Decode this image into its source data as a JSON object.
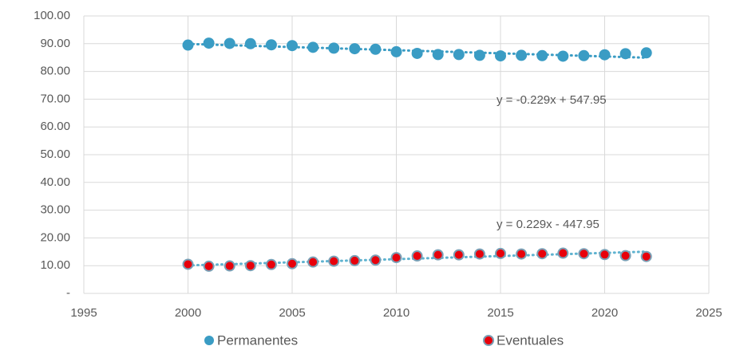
{
  "chart_data": {
    "type": "scatter",
    "x": [
      2000,
      2001,
      2002,
      2003,
      2004,
      2005,
      2006,
      2007,
      2008,
      2009,
      2010,
      2011,
      2012,
      2013,
      2014,
      2015,
      2016,
      2017,
      2018,
      2019,
      2020,
      2021,
      2022
    ],
    "series": [
      {
        "name": "Permanentes",
        "color": "#3a9cc4",
        "trendline": true,
        "values": [
          89.5,
          90.2,
          90.1,
          90.0,
          89.6,
          89.3,
          88.7,
          88.4,
          88.2,
          88.0,
          87.1,
          86.5,
          86.1,
          86.1,
          85.8,
          85.6,
          85.8,
          85.7,
          85.5,
          85.7,
          86.0,
          86.4,
          86.7
        ]
      },
      {
        "name": "Eventuales",
        "color": "#e8000b",
        "trendline": true,
        "values": [
          10.5,
          9.8,
          9.9,
          10.0,
          10.4,
          10.7,
          11.3,
          11.6,
          11.8,
          12.0,
          12.9,
          13.5,
          13.9,
          13.9,
          14.2,
          14.4,
          14.2,
          14.3,
          14.5,
          14.3,
          14.0,
          13.6,
          13.3
        ]
      }
    ],
    "annotations": [
      "y = -0.229x + 547.95",
      "y = 0.229x - 447.95"
    ],
    "xlim": [
      1995,
      2025
    ],
    "xticks": [
      1995,
      2000,
      2005,
      2010,
      2015,
      2020,
      2025
    ],
    "ylim": [
      0,
      100
    ],
    "yticks": [
      {
        "value": 0,
        "label": "-"
      },
      {
        "value": 10,
        "label": "10.00"
      },
      {
        "value": 20,
        "label": "20.00"
      },
      {
        "value": 30,
        "label": "30.00"
      },
      {
        "value": 40,
        "label": "40.00"
      },
      {
        "value": 50,
        "label": "50.00"
      },
      {
        "value": 60,
        "label": "60.00"
      },
      {
        "value": 70,
        "label": "70.00"
      },
      {
        "value": 80,
        "label": "80.00"
      },
      {
        "value": 90,
        "label": "90.00"
      },
      {
        "value": 100,
        "label": "100.00"
      }
    ],
    "grid": true,
    "legend": "bottom"
  }
}
